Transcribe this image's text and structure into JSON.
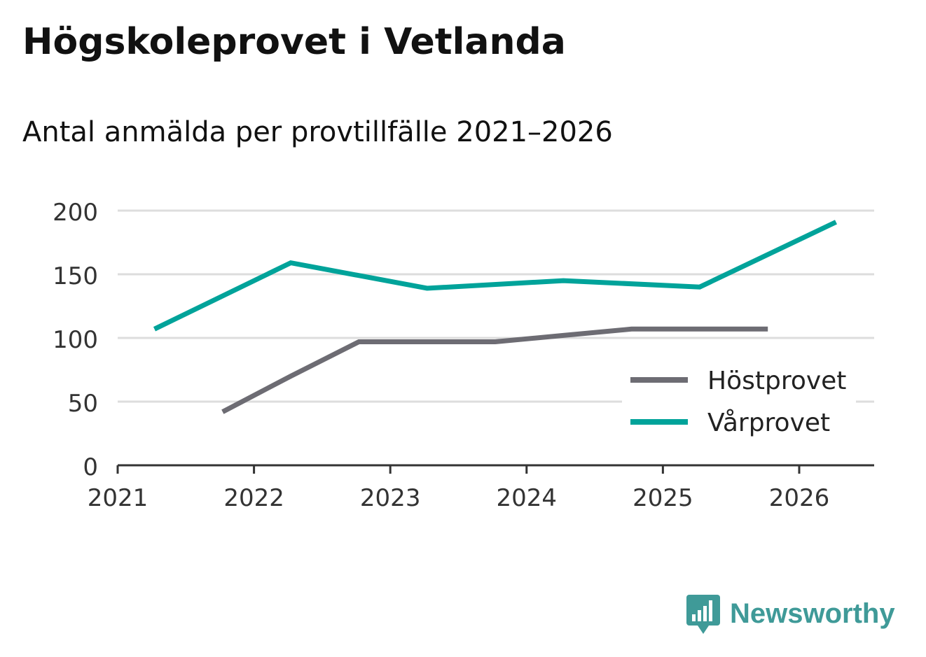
{
  "title": "Högskoleprovet i Vetlanda",
  "subtitle": "Antal anmälda per provtillfälle 2021–2026",
  "brand": {
    "name": "Newsworthy",
    "icon": "newsworthy-logo-icon",
    "color": "#3f9a98"
  },
  "chart_data": {
    "type": "line",
    "title": "Högskoleprovet i Vetlanda",
    "subtitle": "Antal anmälda per provtillfälle 2021–2026",
    "xlabel": "",
    "ylabel": "",
    "xlim": [
      2021,
      2026.55
    ],
    "ylim": [
      0,
      200
    ],
    "x_ticks": [
      2021,
      2022,
      2023,
      2024,
      2025,
      2026
    ],
    "x_tick_labels": [
      "2021",
      "2022",
      "2023",
      "2024",
      "2025",
      "2026"
    ],
    "y_ticks": [
      0,
      50,
      100,
      150,
      200
    ],
    "y_tick_labels": [
      "0",
      "50",
      "100",
      "150",
      "200"
    ],
    "grid": true,
    "legend_position": "right",
    "series": [
      {
        "name": "Höstprovet",
        "color": "#6d6c73",
        "x": [
          2021.77,
          2022.27,
          2022.77,
          2023.27,
          2023.77,
          2024.27,
          2024.77,
          2025.27,
          2025.77
        ],
        "y": [
          42,
          70,
          97,
          97,
          97,
          102,
          107,
          107,
          107
        ]
      },
      {
        "name": "Vårprovet",
        "color": "#00a39a",
        "x": [
          2021.27,
          2022.27,
          2023.27,
          2024.27,
          2025.27,
          2026.27
        ],
        "y": [
          107,
          159,
          139,
          145,
          140,
          191
        ]
      }
    ]
  }
}
